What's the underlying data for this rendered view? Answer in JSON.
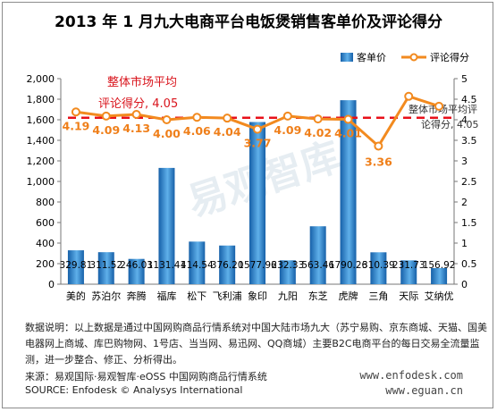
{
  "title": "2013 年 1 月九大电商平台电饭煲销售客单价及评论得分",
  "chart_data": {
    "type": "bar",
    "title": "2013 年 1 月九大电商平台电饭煲销售客单价及评论得分",
    "categories": [
      "美的",
      "苏泊尔",
      "奔腾",
      "福库",
      "松下",
      "飞利浦",
      "象印",
      "九阳",
      "东芝",
      "虎牌",
      "三角",
      "天际",
      "艾纳优"
    ],
    "series": [
      {
        "name": "客单价",
        "axis": "left",
        "kind": "bar",
        "values": [
          329.81,
          311.52,
          246.03,
          1131.41,
          414.54,
          376.2,
          1577.96,
          232.33,
          563.46,
          1790.26,
          310.39,
          231.73,
          156.92
        ],
        "labels": [
          "329.81",
          "311.52",
          "246.03",
          "1131.41",
          "414.54",
          "376.20",
          "1577.96",
          "232.33",
          "563.46",
          "1790.26",
          "310.39",
          "231.73",
          "156.92"
        ]
      },
      {
        "name": "评论得分",
        "axis": "right",
        "kind": "line",
        "values": [
          4.19,
          4.09,
          4.13,
          4.0,
          4.06,
          4.04,
          3.77,
          4.09,
          4.02,
          4.01,
          3.36,
          4.57,
          4.33
        ],
        "labels": [
          "4.19",
          "4.09",
          "4.13",
          "4.00",
          "4.06",
          "4.04",
          "3.77",
          "4.09",
          "4.02",
          "4.01",
          "3.36",
          "",
          ""
        ]
      }
    ],
    "reference_line": {
      "value": 4.05,
      "label_left": "整体市场平均",
      "label_left2": "评论得分, 4.05",
      "label_right": "整体市场平均评论得分, 4.05"
    },
    "y_left": {
      "min": 0,
      "max": 2000,
      "ticks": [
        "0",
        "200",
        "400",
        "600",
        "800",
        "1,000",
        "1,200",
        "1,400",
        "1,600",
        "1,800",
        "2,000"
      ]
    },
    "y_right": {
      "min": 0,
      "max": 5,
      "ticks": [
        "0",
        "0.5",
        "1",
        "1.5",
        "2",
        "2.5",
        "3",
        "3.5",
        "4",
        "4.5",
        "5"
      ]
    },
    "legend": {
      "position": "top-right",
      "items": [
        "客单价",
        "评论得分"
      ]
    },
    "watermark": "易观智库",
    "colors": {
      "bar_dark": "#1660a8",
      "bar_light": "#5fb0ea",
      "line": "#f28a1f",
      "line_label": "#ef7f1a",
      "reference": "#e8101a",
      "reference_text": "#d9141c",
      "watermark": "#c7d6e3"
    }
  },
  "notes": "数据说明：以上数据是通过中国网购商品行情系统对中国大陆市场九大（苏宁易购、京东商城、天猫、国美电器网上商城、库巴购物网、1号店、当当网、易迅网、QQ商城）主要B2C电商平台的每日交易全流量监测，进一步整合、修正、分析得出。",
  "source_cn": "来源：易观国际·易观智库·eOSS 中国网购商品行情系统",
  "source_en": "SOURCE: Enfodesk © Analysys International",
  "site1": "www.enfodesk.com",
  "site2": "www.eguan.cn"
}
